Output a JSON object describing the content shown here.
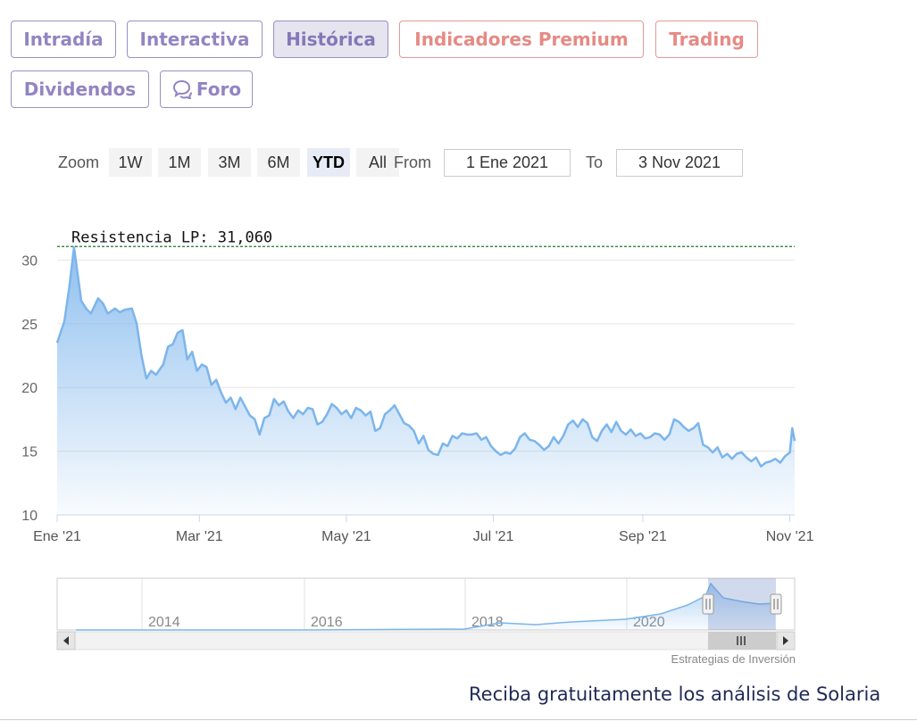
{
  "tabs": [
    {
      "label": "Intradía",
      "active": false,
      "premium": false
    },
    {
      "label": "Interactiva",
      "active": false,
      "premium": false
    },
    {
      "label": "Histórica",
      "active": true,
      "premium": false
    },
    {
      "label": "Indicadores Premium",
      "active": false,
      "premium": true
    },
    {
      "label": "Trading",
      "active": false,
      "premium": true
    },
    {
      "label": "Dividendos",
      "active": false,
      "premium": false
    },
    {
      "label": "Foro",
      "active": false,
      "premium": false,
      "icon": "speech-bubbles-icon"
    }
  ],
  "zoom": {
    "label": "Zoom",
    "buttons": [
      "1W",
      "1M",
      "3M",
      "6M",
      "YTD",
      "All"
    ],
    "active": "YTD"
  },
  "range": {
    "from_label": "From",
    "from_value": "1 Ene 2021",
    "to_label": "To",
    "to_value": "3 Nov 2021"
  },
  "chart_data": {
    "type": "area",
    "x_tick_labels": [
      "Ene '21",
      "Mar '21",
      "May '21",
      "Jul '21",
      "Sep '21",
      "Nov '21"
    ],
    "y_ticks": [
      10,
      15,
      20,
      25,
      30
    ],
    "ylim": [
      10,
      31.5
    ],
    "xlim": [
      "2021-01-01",
      "2021-11-03"
    ],
    "grid": true,
    "series": [
      {
        "values": [
          [
            "2021-01-01",
            23.5
          ],
          [
            "2021-01-04",
            25.2
          ],
          [
            "2021-01-06",
            27.8
          ],
          [
            "2021-01-08",
            31.0
          ],
          [
            "2021-01-11",
            26.8
          ],
          [
            "2021-01-13",
            26.2
          ],
          [
            "2021-01-15",
            25.8
          ],
          [
            "2021-01-18",
            27.0
          ],
          [
            "2021-01-20",
            26.6
          ],
          [
            "2021-01-22",
            25.8
          ],
          [
            "2021-01-25",
            26.2
          ],
          [
            "2021-01-27",
            25.9
          ],
          [
            "2021-01-29",
            26.1
          ],
          [
            "2021-02-01",
            26.2
          ],
          [
            "2021-02-03",
            25.0
          ],
          [
            "2021-02-05",
            22.5
          ],
          [
            "2021-02-07",
            20.7
          ],
          [
            "2021-02-09",
            21.3
          ],
          [
            "2021-02-11",
            21.0
          ],
          [
            "2021-02-14",
            21.8
          ],
          [
            "2021-02-16",
            23.2
          ],
          [
            "2021-02-18",
            23.4
          ],
          [
            "2021-02-20",
            24.3
          ],
          [
            "2021-02-22",
            24.5
          ],
          [
            "2021-02-24",
            22.2
          ],
          [
            "2021-02-26",
            22.8
          ],
          [
            "2021-02-28",
            21.3
          ],
          [
            "2021-03-02",
            21.8
          ],
          [
            "2021-03-04",
            21.6
          ],
          [
            "2021-03-06",
            20.2
          ],
          [
            "2021-03-08",
            20.6
          ],
          [
            "2021-03-10",
            19.6
          ],
          [
            "2021-03-12",
            18.8
          ],
          [
            "2021-03-14",
            19.2
          ],
          [
            "2021-03-16",
            18.3
          ],
          [
            "2021-03-18",
            19.2
          ],
          [
            "2021-03-20",
            18.5
          ],
          [
            "2021-03-22",
            17.8
          ],
          [
            "2021-03-24",
            17.5
          ],
          [
            "2021-03-26",
            16.3
          ],
          [
            "2021-03-28",
            17.6
          ],
          [
            "2021-03-30",
            17.8
          ],
          [
            "2021-04-01",
            19.1
          ],
          [
            "2021-04-03",
            18.6
          ],
          [
            "2021-04-05",
            18.9
          ],
          [
            "2021-04-07",
            18.1
          ],
          [
            "2021-04-09",
            17.6
          ],
          [
            "2021-04-11",
            18.2
          ],
          [
            "2021-04-13",
            17.9
          ],
          [
            "2021-04-15",
            18.4
          ],
          [
            "2021-04-17",
            18.3
          ],
          [
            "2021-04-19",
            17.1
          ],
          [
            "2021-04-21",
            17.3
          ],
          [
            "2021-04-23",
            17.9
          ],
          [
            "2021-04-25",
            18.7
          ],
          [
            "2021-04-27",
            18.4
          ],
          [
            "2021-04-29",
            17.9
          ],
          [
            "2021-05-01",
            18.2
          ],
          [
            "2021-05-03",
            17.6
          ],
          [
            "2021-05-05",
            18.4
          ],
          [
            "2021-05-07",
            18.2
          ],
          [
            "2021-05-09",
            17.8
          ],
          [
            "2021-05-11",
            18.1
          ],
          [
            "2021-05-13",
            16.6
          ],
          [
            "2021-05-15",
            16.8
          ],
          [
            "2021-05-17",
            17.9
          ],
          [
            "2021-05-19",
            18.2
          ],
          [
            "2021-05-21",
            18.6
          ],
          [
            "2021-05-23",
            17.9
          ],
          [
            "2021-05-25",
            17.2
          ],
          [
            "2021-05-27",
            17.0
          ],
          [
            "2021-05-29",
            16.6
          ],
          [
            "2021-05-31",
            15.6
          ],
          [
            "2021-06-02",
            16.2
          ],
          [
            "2021-06-04",
            15.1
          ],
          [
            "2021-06-06",
            14.8
          ],
          [
            "2021-06-08",
            14.7
          ],
          [
            "2021-06-10",
            15.6
          ],
          [
            "2021-06-12",
            15.4
          ],
          [
            "2021-06-14",
            16.2
          ],
          [
            "2021-06-16",
            16.0
          ],
          [
            "2021-06-18",
            16.4
          ],
          [
            "2021-06-20",
            16.3
          ],
          [
            "2021-06-22",
            16.3
          ],
          [
            "2021-06-24",
            16.4
          ],
          [
            "2021-06-26",
            15.9
          ],
          [
            "2021-06-28",
            16.1
          ],
          [
            "2021-06-30",
            15.4
          ],
          [
            "2021-07-02",
            15.0
          ],
          [
            "2021-07-04",
            14.7
          ],
          [
            "2021-07-06",
            14.9
          ],
          [
            "2021-07-08",
            14.8
          ],
          [
            "2021-07-10",
            15.2
          ],
          [
            "2021-07-12",
            16.1
          ],
          [
            "2021-07-14",
            16.4
          ],
          [
            "2021-07-16",
            15.9
          ],
          [
            "2021-07-18",
            15.8
          ],
          [
            "2021-07-20",
            15.5
          ],
          [
            "2021-07-22",
            15.1
          ],
          [
            "2021-07-24",
            15.4
          ],
          [
            "2021-07-26",
            16.1
          ],
          [
            "2021-07-28",
            15.6
          ],
          [
            "2021-07-30",
            16.2
          ],
          [
            "2021-08-01",
            17.1
          ],
          [
            "2021-08-03",
            17.4
          ],
          [
            "2021-08-05",
            16.9
          ],
          [
            "2021-08-07",
            17.5
          ],
          [
            "2021-08-09",
            17.2
          ],
          [
            "2021-08-11",
            16.1
          ],
          [
            "2021-08-13",
            15.8
          ],
          [
            "2021-08-15",
            16.6
          ],
          [
            "2021-08-17",
            17.1
          ],
          [
            "2021-08-19",
            16.5
          ],
          [
            "2021-08-21",
            17.3
          ],
          [
            "2021-08-23",
            16.6
          ],
          [
            "2021-08-25",
            16.3
          ],
          [
            "2021-08-27",
            16.7
          ],
          [
            "2021-08-29",
            16.2
          ],
          [
            "2021-08-31",
            16.4
          ],
          [
            "2021-09-02",
            16.0
          ],
          [
            "2021-09-04",
            16.1
          ],
          [
            "2021-09-06",
            16.4
          ],
          [
            "2021-09-08",
            16.3
          ],
          [
            "2021-09-10",
            15.9
          ],
          [
            "2021-09-12",
            16.3
          ],
          [
            "2021-09-14",
            17.5
          ],
          [
            "2021-09-16",
            17.3
          ],
          [
            "2021-09-18",
            16.9
          ],
          [
            "2021-09-20",
            16.6
          ],
          [
            "2021-09-22",
            16.8
          ],
          [
            "2021-09-24",
            17.2
          ],
          [
            "2021-09-26",
            15.5
          ],
          [
            "2021-09-28",
            15.3
          ],
          [
            "2021-09-30",
            14.9
          ],
          [
            "2021-10-02",
            15.3
          ],
          [
            "2021-10-04",
            14.5
          ],
          [
            "2021-10-06",
            14.8
          ],
          [
            "2021-10-08",
            14.4
          ],
          [
            "2021-10-10",
            14.8
          ],
          [
            "2021-10-12",
            14.9
          ],
          [
            "2021-10-14",
            14.5
          ],
          [
            "2021-10-16",
            14.2
          ],
          [
            "2021-10-18",
            14.5
          ],
          [
            "2021-10-20",
            13.8
          ],
          [
            "2021-10-22",
            14.1
          ],
          [
            "2021-10-24",
            14.2
          ],
          [
            "2021-10-26",
            14.4
          ],
          [
            "2021-10-28",
            14.1
          ],
          [
            "2021-10-30",
            14.6
          ],
          [
            "2021-11-01",
            14.9
          ],
          [
            "2021-11-02",
            16.8
          ],
          [
            "2021-11-03",
            15.8
          ]
        ]
      }
    ],
    "annotation": {
      "label": "Resistencia LP: 31,060",
      "value": 31.06,
      "color": "#1a7a2a"
    },
    "navigator": {
      "year_labels": [
        "2014",
        "2016",
        "2018",
        "2020"
      ],
      "selection": [
        "2021-01-01",
        "2021-11-03"
      ]
    },
    "line_color": "#7cb5ec"
  },
  "credit": "Estrategias de Inversión",
  "footer_note": "Reciba gratuitamente los análisis de Solaria"
}
